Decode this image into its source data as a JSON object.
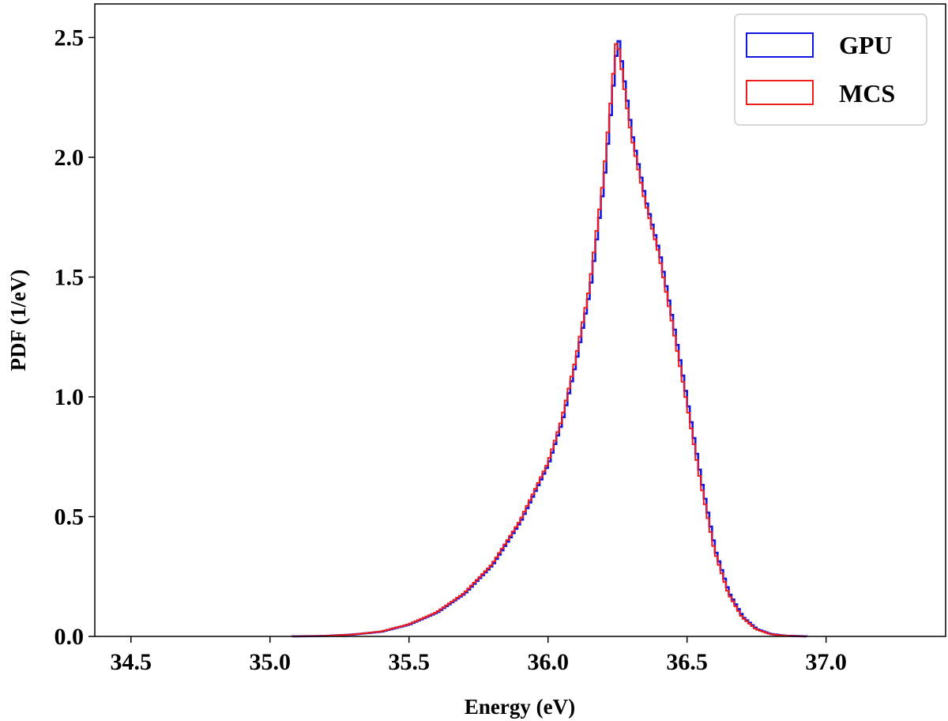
{
  "chart_data": {
    "type": "line",
    "title": "",
    "xlabel": "Energy (eV)",
    "ylabel": "PDF (1/eV)",
    "xlim": [
      34.37,
      37.43
    ],
    "ylim": [
      0.0,
      2.64
    ],
    "xticks": [
      34.5,
      35.0,
      35.5,
      36.0,
      36.5,
      37.0
    ],
    "xtick_labels": [
      "34.5",
      "35.0",
      "35.5",
      "36.0",
      "36.5",
      "37.0"
    ],
    "yticks": [
      0.0,
      0.5,
      1.0,
      1.5,
      2.0,
      2.5
    ],
    "ytick_labels": [
      "0.0",
      "0.5",
      "1.0",
      "1.5",
      "2.0",
      "2.5"
    ],
    "grid": false,
    "legend_position": "top-right",
    "series": [
      {
        "name": "GPU",
        "color": "#1515e0",
        "style": "step",
        "x": [
          35.08,
          35.2,
          35.3,
          35.4,
          35.5,
          35.6,
          35.7,
          35.8,
          35.9,
          36.0,
          36.05,
          36.1,
          36.15,
          36.2,
          36.225,
          36.25,
          36.275,
          36.3,
          36.35,
          36.4,
          36.45,
          36.5,
          36.55,
          36.6,
          36.65,
          36.7,
          36.75,
          36.8,
          36.85,
          36.93
        ],
        "y": [
          0.0,
          0.002,
          0.008,
          0.02,
          0.05,
          0.1,
          0.18,
          0.3,
          0.48,
          0.72,
          0.9,
          1.15,
          1.45,
          1.9,
          2.2,
          2.51,
          2.3,
          2.1,
          1.82,
          1.6,
          1.3,
          0.98,
          0.65,
          0.36,
          0.18,
          0.08,
          0.03,
          0.01,
          0.003,
          0.0
        ]
      },
      {
        "name": "MCS",
        "color": "#ee1c1c",
        "style": "step",
        "x": [
          35.08,
          35.2,
          35.3,
          35.4,
          35.5,
          35.6,
          35.7,
          35.8,
          35.9,
          36.0,
          36.05,
          36.1,
          36.15,
          36.2,
          36.225,
          36.25,
          36.275,
          36.3,
          36.35,
          36.4,
          36.45,
          36.5,
          36.55,
          36.6,
          36.65,
          36.7,
          36.75,
          36.8,
          36.85,
          36.93
        ],
        "y": [
          0.0,
          0.002,
          0.008,
          0.02,
          0.05,
          0.1,
          0.18,
          0.3,
          0.48,
          0.72,
          0.9,
          1.15,
          1.45,
          1.9,
          2.2,
          2.51,
          2.3,
          2.1,
          1.82,
          1.6,
          1.3,
          0.98,
          0.65,
          0.36,
          0.18,
          0.08,
          0.03,
          0.01,
          0.003,
          0.0
        ]
      }
    ]
  }
}
